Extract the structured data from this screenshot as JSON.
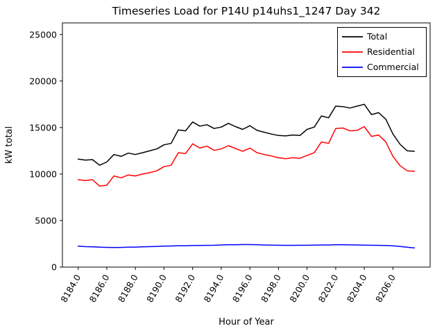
{
  "chart_data": {
    "type": "line",
    "title": "Timeseries Load for P14U p14uhs1_1247  Day 342",
    "xlabel": "Hour of Year",
    "ylabel": "kW total",
    "grid": false,
    "legend_position": "upper right",
    "xlim": [
      8182.9,
      8208.6
    ],
    "ylim": [
      0,
      26250
    ],
    "xticks": {
      "values": [
        8184,
        8186,
        8188,
        8190,
        8192,
        8194,
        8196,
        8198,
        8200,
        8202,
        8204,
        8206
      ],
      "labels": [
        "8184.0",
        "8186.0",
        "8188.0",
        "8190.0",
        "8192.0",
        "8194.0",
        "8196.0",
        "8198.0",
        "8200.0",
        "8202.0",
        "8204.0",
        "8206.0"
      ]
    },
    "yticks": {
      "values": [
        0,
        5000,
        10000,
        15000,
        20000,
        25000
      ],
      "labels": [
        "0",
        "5000",
        "10000",
        "15000",
        "20000",
        "25000"
      ]
    },
    "x": [
      8184.0,
      8184.5,
      8185.0,
      8185.5,
      8186.0,
      8186.5,
      8187.0,
      8187.5,
      8188.0,
      8188.5,
      8189.0,
      8189.5,
      8190.0,
      8190.5,
      8191.0,
      8191.5,
      8192.0,
      8192.5,
      8193.0,
      8193.5,
      8194.0,
      8194.5,
      8195.0,
      8195.5,
      8196.0,
      8196.5,
      8197.0,
      8197.5,
      8198.0,
      8198.5,
      8199.0,
      8199.5,
      8200.0,
      8200.5,
      8201.0,
      8201.5,
      8202.0,
      8202.5,
      8203.0,
      8203.5,
      8204.0,
      8204.5,
      8205.0,
      8205.5,
      8206.0,
      8206.5,
      8207.0,
      8207.5
    ],
    "series": [
      {
        "name": "Total",
        "color": "#000000",
        "values": [
          11600,
          11500,
          11550,
          10950,
          11300,
          12100,
          11900,
          12250,
          12100,
          12300,
          12500,
          12700,
          13150,
          13300,
          14750,
          14650,
          15600,
          15150,
          15300,
          14900,
          15050,
          15450,
          15100,
          14800,
          15200,
          14700,
          14500,
          14300,
          14150,
          14100,
          14200,
          14150,
          14800,
          15050,
          16250,
          16050,
          17300,
          17250,
          17100,
          17300,
          17500,
          16400,
          16600,
          15900,
          14300,
          13200,
          12500,
          12450
        ]
      },
      {
        "name": "Residential",
        "color": "#ff0000",
        "values": [
          9400,
          9300,
          9400,
          8700,
          8800,
          9800,
          9600,
          9900,
          9800,
          10000,
          10150,
          10350,
          10800,
          10950,
          12300,
          12200,
          13250,
          12800,
          13000,
          12550,
          12700,
          13050,
          12750,
          12450,
          12800,
          12300,
          12100,
          11950,
          11750,
          11650,
          11750,
          11700,
          12000,
          12300,
          13450,
          13300,
          14900,
          14950,
          14650,
          14700,
          15100,
          14050,
          14200,
          13450,
          11900,
          10900,
          10350,
          10300
        ]
      },
      {
        "name": "Commercial",
        "color": "#0000ff",
        "values": [
          2250,
          2200,
          2180,
          2150,
          2120,
          2100,
          2120,
          2150,
          2150,
          2180,
          2200,
          2220,
          2250,
          2270,
          2300,
          2300,
          2320,
          2330,
          2340,
          2350,
          2380,
          2400,
          2400,
          2420,
          2420,
          2400,
          2380,
          2360,
          2350,
          2340,
          2340,
          2350,
          2350,
          2360,
          2380,
          2380,
          2400,
          2400,
          2390,
          2380,
          2360,
          2350,
          2340,
          2320,
          2280,
          2220,
          2130,
          2060
        ]
      }
    ]
  }
}
